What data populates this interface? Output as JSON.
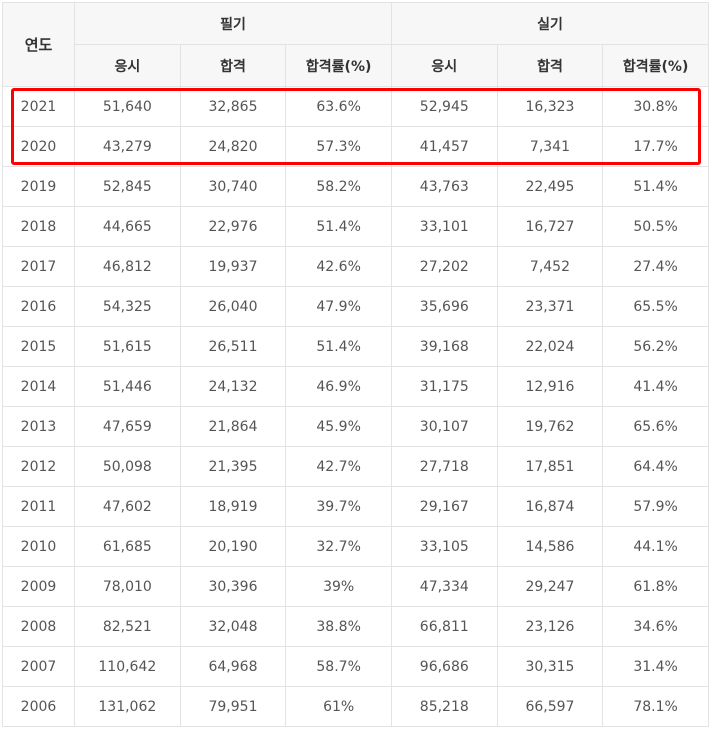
{
  "header": {
    "year": "연도",
    "written": "필기",
    "practical": "실기",
    "sub": [
      "응시",
      "합격",
      "합격률(%)",
      "응시",
      "합격",
      "합격률(%)"
    ]
  },
  "rows": [
    [
      "2021",
      "51,640",
      "32,865",
      "63.6%",
      "52,945",
      "16,323",
      "30.8%"
    ],
    [
      "2020",
      "43,279",
      "24,820",
      "57.3%",
      "41,457",
      "7,341",
      "17.7%"
    ],
    [
      "2019",
      "52,845",
      "30,740",
      "58.2%",
      "43,763",
      "22,495",
      "51.4%"
    ],
    [
      "2018",
      "44,665",
      "22,976",
      "51.4%",
      "33,101",
      "16,727",
      "50.5%"
    ],
    [
      "2017",
      "46,812",
      "19,937",
      "42.6%",
      "27,202",
      "7,452",
      "27.4%"
    ],
    [
      "2016",
      "54,325",
      "26,040",
      "47.9%",
      "35,696",
      "23,371",
      "65.5%"
    ],
    [
      "2015",
      "51,615",
      "26,511",
      "51.4%",
      "39,168",
      "22,024",
      "56.2%"
    ],
    [
      "2014",
      "51,446",
      "24,132",
      "46.9%",
      "31,175",
      "12,916",
      "41.4%"
    ],
    [
      "2013",
      "47,659",
      "21,864",
      "45.9%",
      "30,107",
      "19,762",
      "65.6%"
    ],
    [
      "2012",
      "50,098",
      "21,395",
      "42.7%",
      "27,718",
      "17,851",
      "64.4%"
    ],
    [
      "2011",
      "47,602",
      "18,919",
      "39.7%",
      "29,167",
      "16,874",
      "57.9%"
    ],
    [
      "2010",
      "61,685",
      "20,190",
      "32.7%",
      "33,105",
      "14,586",
      "44.1%"
    ],
    [
      "2009",
      "78,010",
      "30,396",
      "39%",
      "47,334",
      "29,247",
      "61.8%"
    ],
    [
      "2008",
      "82,521",
      "32,048",
      "38.8%",
      "66,811",
      "23,126",
      "34.6%"
    ],
    [
      "2007",
      "110,642",
      "64,968",
      "58.7%",
      "96,686",
      "30,315",
      "31.4%"
    ],
    [
      "2006",
      "131,062",
      "79,951",
      "61%",
      "85,218",
      "66,597",
      "78.1%"
    ]
  ],
  "highlight": {
    "color": "#ff0000"
  }
}
